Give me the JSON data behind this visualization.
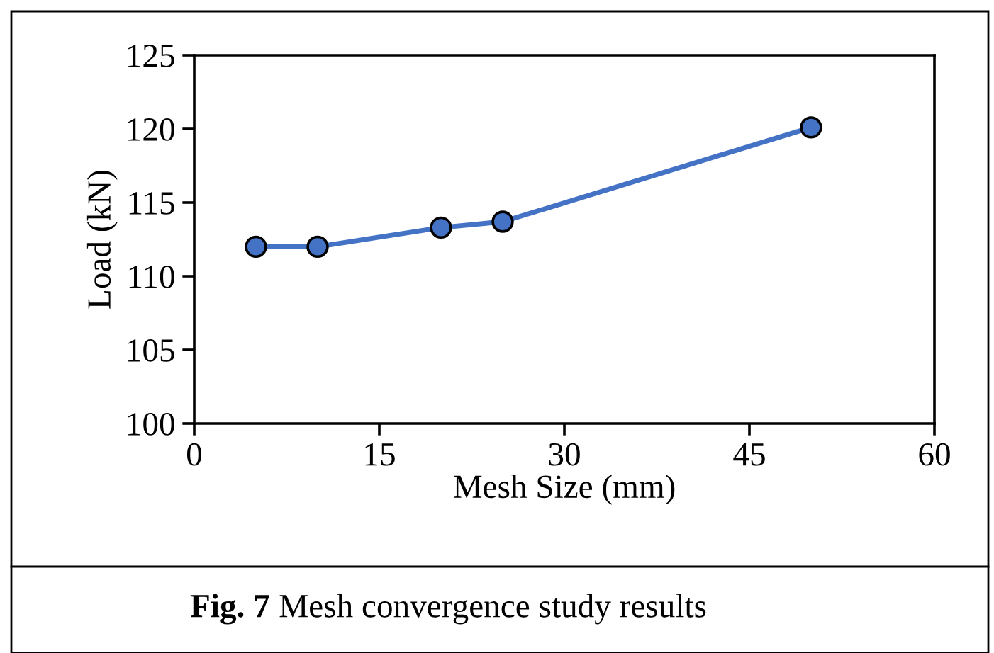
{
  "chart_data": {
    "type": "line",
    "xlabel": "Mesh Size (mm)",
    "ylabel": "Load (kN)",
    "annotations": [
      "Fig. 7",
      "Mesh convergence study results"
    ],
    "x": [
      5,
      10,
      20,
      25,
      50
    ],
    "series": [
      {
        "color": "#4472c4",
        "values": [
          112.0,
          112.0,
          113.3,
          113.7,
          120.1
        ]
      }
    ],
    "marker": "circle",
    "line_style": "solid",
    "xlim": [
      0,
      60
    ],
    "xticks": [
      0,
      15,
      30,
      45,
      60
    ],
    "ylim": [
      100,
      125
    ],
    "yticks": [
      100,
      105,
      110,
      115,
      120,
      125
    ],
    "grid": false
  }
}
